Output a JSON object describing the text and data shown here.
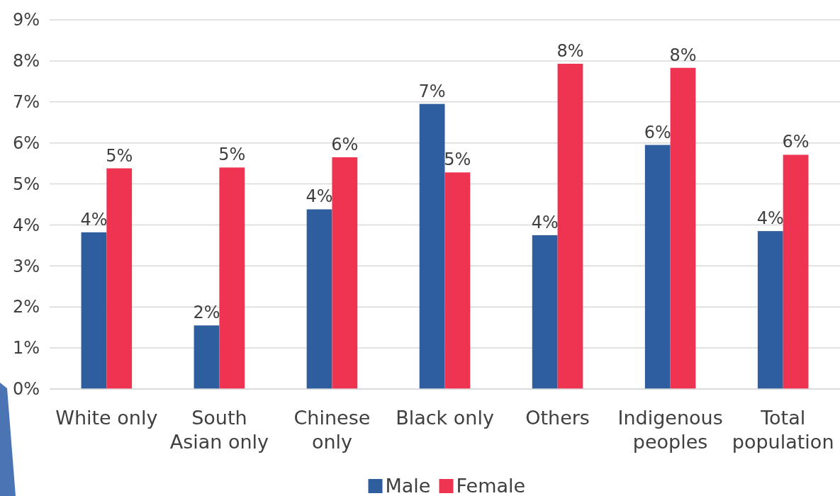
{
  "chart_data": {
    "type": "bar",
    "categories": [
      "White only",
      "South Asian only",
      "Chinese only",
      "Black only",
      "Others",
      "Indigenous peoples",
      "Total population"
    ],
    "series": [
      {
        "name": "Male",
        "color": "#2e5e9e",
        "values": [
          3.82,
          1.55,
          4.38,
          6.95,
          3.75,
          5.95,
          3.85
        ],
        "value_labels": [
          "4%",
          "2%",
          "4%",
          "7%",
          "4%",
          "6%",
          "4%"
        ]
      },
      {
        "name": "Female",
        "color": "#ee3450",
        "values": [
          5.38,
          5.4,
          5.65,
          5.28,
          7.93,
          7.83,
          5.71
        ],
        "value_labels": [
          "5%",
          "5%",
          "6%",
          "5%",
          "8%",
          "8%",
          "6%"
        ]
      }
    ],
    "ylim": [
      0,
      9
    ],
    "yticks": [
      {
        "value": 0,
        "label": "0%"
      },
      {
        "value": 1,
        "label": "1%"
      },
      {
        "value": 2,
        "label": "2%"
      },
      {
        "value": 3,
        "label": "3%"
      },
      {
        "value": 4,
        "label": "4%"
      },
      {
        "value": 5,
        "label": "5%"
      },
      {
        "value": 6,
        "label": "6%"
      },
      {
        "value": 7,
        "label": "7%"
      },
      {
        "value": 8,
        "label": "8%"
      },
      {
        "value": 9,
        "label": "9%"
      }
    ],
    "grid": "y",
    "legend": "bottom"
  }
}
